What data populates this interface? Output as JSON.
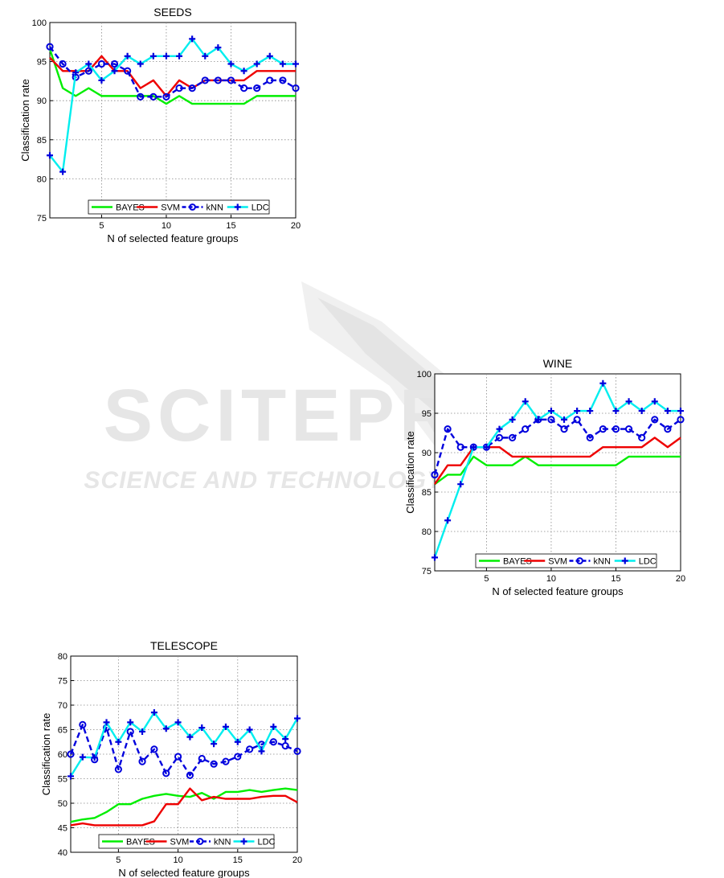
{
  "watermark": {
    "big": "SCITEPRESS",
    "small": "SCIENCE AND TECHNOLOGY PUBLICATIONS"
  },
  "colors": {
    "BAYES": "#00ee00",
    "SVM": "#ee0000",
    "kNN": "#0000dd",
    "LDC": "#00eeee"
  },
  "chart_data": [
    {
      "type": "line",
      "title": "SEEDS",
      "xlabel": "N of selected feature groups",
      "ylabel": "Classification rate",
      "xlim": [
        1,
        20
      ],
      "ylim": [
        75,
        100
      ],
      "xticks": [
        5,
        10,
        15,
        20
      ],
      "yticks": [
        75,
        80,
        85,
        90,
        95,
        100
      ],
      "grid": true,
      "legend": "bottom-center",
      "x": [
        1,
        2,
        3,
        4,
        5,
        6,
        7,
        8,
        9,
        10,
        11,
        12,
        13,
        14,
        15,
        16,
        17,
        18,
        19,
        20
      ],
      "series": [
        {
          "name": "BAYES",
          "marker": "none",
          "dash": "solid",
          "values": [
            96.6,
            91.6,
            90.6,
            91.6,
            90.6,
            90.6,
            90.6,
            90.6,
            90.6,
            89.6,
            90.6,
            89.6,
            89.6,
            89.6,
            89.6,
            89.6,
            90.6,
            90.6,
            90.6,
            90.6
          ]
        },
        {
          "name": "SVM",
          "marker": "none",
          "dash": "solid",
          "values": [
            95.5,
            93.8,
            93.8,
            93.8,
            95.7,
            93.8,
            93.8,
            91.6,
            92.6,
            90.6,
            92.6,
            91.6,
            92.6,
            92.6,
            92.6,
            92.6,
            93.8,
            93.8,
            93.8,
            93.8
          ]
        },
        {
          "name": "kNN",
          "marker": "circle",
          "dash": "dashed",
          "values": [
            96.9,
            94.7,
            93.0,
            93.8,
            94.7,
            94.7,
            93.8,
            90.5,
            90.5,
            90.5,
            91.6,
            91.6,
            92.6,
            92.6,
            92.6,
            91.6,
            91.6,
            92.6,
            92.6,
            91.6
          ]
        },
        {
          "name": "LDC",
          "marker": "plus",
          "dash": "solid",
          "values": [
            83.0,
            80.9,
            93.6,
            94.7,
            92.6,
            93.8,
            95.7,
            94.7,
            95.7,
            95.7,
            95.7,
            97.9,
            95.7,
            96.8,
            94.7,
            93.8,
            94.7,
            95.7,
            94.7,
            94.7
          ]
        }
      ]
    },
    {
      "type": "line",
      "title": "WINE",
      "xlabel": "N of selected feature groups",
      "ylabel": "Classification rate",
      "xlim": [
        1,
        20
      ],
      "ylim": [
        75,
        100
      ],
      "xticks": [
        5,
        10,
        15,
        20
      ],
      "yticks": [
        75,
        80,
        85,
        90,
        95,
        100
      ],
      "grid": true,
      "legend": "bottom-center",
      "x": [
        1,
        2,
        3,
        4,
        5,
        6,
        7,
        8,
        9,
        10,
        11,
        12,
        13,
        14,
        15,
        16,
        17,
        18,
        19,
        20
      ],
      "series": [
        {
          "name": "BAYES",
          "marker": "none",
          "dash": "solid",
          "values": [
            86.0,
            87.2,
            87.2,
            89.5,
            88.4,
            88.4,
            88.4,
            89.5,
            88.4,
            88.4,
            88.4,
            88.4,
            88.4,
            88.4,
            88.4,
            89.5,
            89.5,
            89.5,
            89.5,
            89.5
          ]
        },
        {
          "name": "SVM",
          "marker": "none",
          "dash": "solid",
          "values": [
            86.0,
            88.4,
            88.4,
            90.7,
            90.7,
            90.7,
            89.5,
            89.5,
            89.5,
            89.5,
            89.5,
            89.5,
            89.5,
            90.7,
            90.7,
            90.7,
            90.7,
            91.9,
            90.7,
            91.9
          ]
        },
        {
          "name": "kNN",
          "marker": "circle",
          "dash": "dashed",
          "values": [
            87.2,
            93.0,
            90.7,
            90.7,
            90.7,
            91.9,
            91.9,
            93.0,
            94.2,
            94.2,
            93.0,
            94.2,
            91.9,
            93.0,
            93.0,
            93.0,
            91.9,
            94.2,
            93.0,
            94.2
          ]
        },
        {
          "name": "LDC",
          "marker": "plus",
          "dash": "solid",
          "values": [
            76.7,
            81.4,
            86.0,
            90.7,
            90.7,
            93.0,
            94.2,
            96.5,
            94.2,
            95.3,
            94.2,
            95.3,
            95.3,
            98.8,
            95.3,
            96.5,
            95.3,
            96.5,
            95.3,
            95.3
          ]
        }
      ]
    },
    {
      "type": "line",
      "title": "TELESCOPE",
      "xlabel": "N of selected feature groups",
      "ylabel": "Classification rate",
      "xlim": [
        1,
        20
      ],
      "ylim": [
        40,
        80
      ],
      "xticks": [
        5,
        10,
        15,
        20
      ],
      "yticks": [
        40,
        45,
        50,
        55,
        60,
        65,
        70,
        75,
        80
      ],
      "grid": true,
      "legend": "bottom-center",
      "x": [
        1,
        2,
        3,
        4,
        5,
        6,
        7,
        8,
        9,
        10,
        11,
        12,
        13,
        14,
        15,
        16,
        17,
        18,
        19,
        20
      ],
      "series": [
        {
          "name": "BAYES",
          "marker": "none",
          "dash": "solid",
          "values": [
            46.2,
            46.7,
            47.0,
            48.2,
            49.8,
            49.8,
            50.9,
            51.5,
            51.9,
            51.5,
            51.3,
            52.1,
            50.9,
            52.3,
            52.3,
            52.7,
            52.3,
            52.7,
            53.0,
            52.7
          ]
        },
        {
          "name": "SVM",
          "marker": "none",
          "dash": "solid",
          "values": [
            45.5,
            45.9,
            45.5,
            45.5,
            45.5,
            45.5,
            45.5,
            46.3,
            49.8,
            49.8,
            53.0,
            50.6,
            51.3,
            50.9,
            50.9,
            50.9,
            51.3,
            51.5,
            51.5,
            50.2
          ]
        },
        {
          "name": "kNN",
          "marker": "circle",
          "dash": "dashed",
          "values": [
            60.0,
            66.0,
            58.9,
            65.4,
            56.9,
            64.6,
            58.5,
            61.0,
            56.1,
            59.5,
            55.7,
            59.1,
            58.0,
            58.5,
            59.5,
            61.0,
            62.0,
            62.5,
            61.7,
            60.6
          ]
        },
        {
          "name": "LDC",
          "marker": "plus",
          "dash": "solid",
          "values": [
            55.5,
            59.4,
            59.3,
            66.5,
            62.5,
            66.5,
            64.6,
            68.5,
            65.2,
            66.5,
            63.5,
            65.4,
            62.1,
            65.6,
            62.5,
            65.0,
            60.6,
            65.6,
            63.1,
            67.3
          ]
        }
      ]
    }
  ]
}
